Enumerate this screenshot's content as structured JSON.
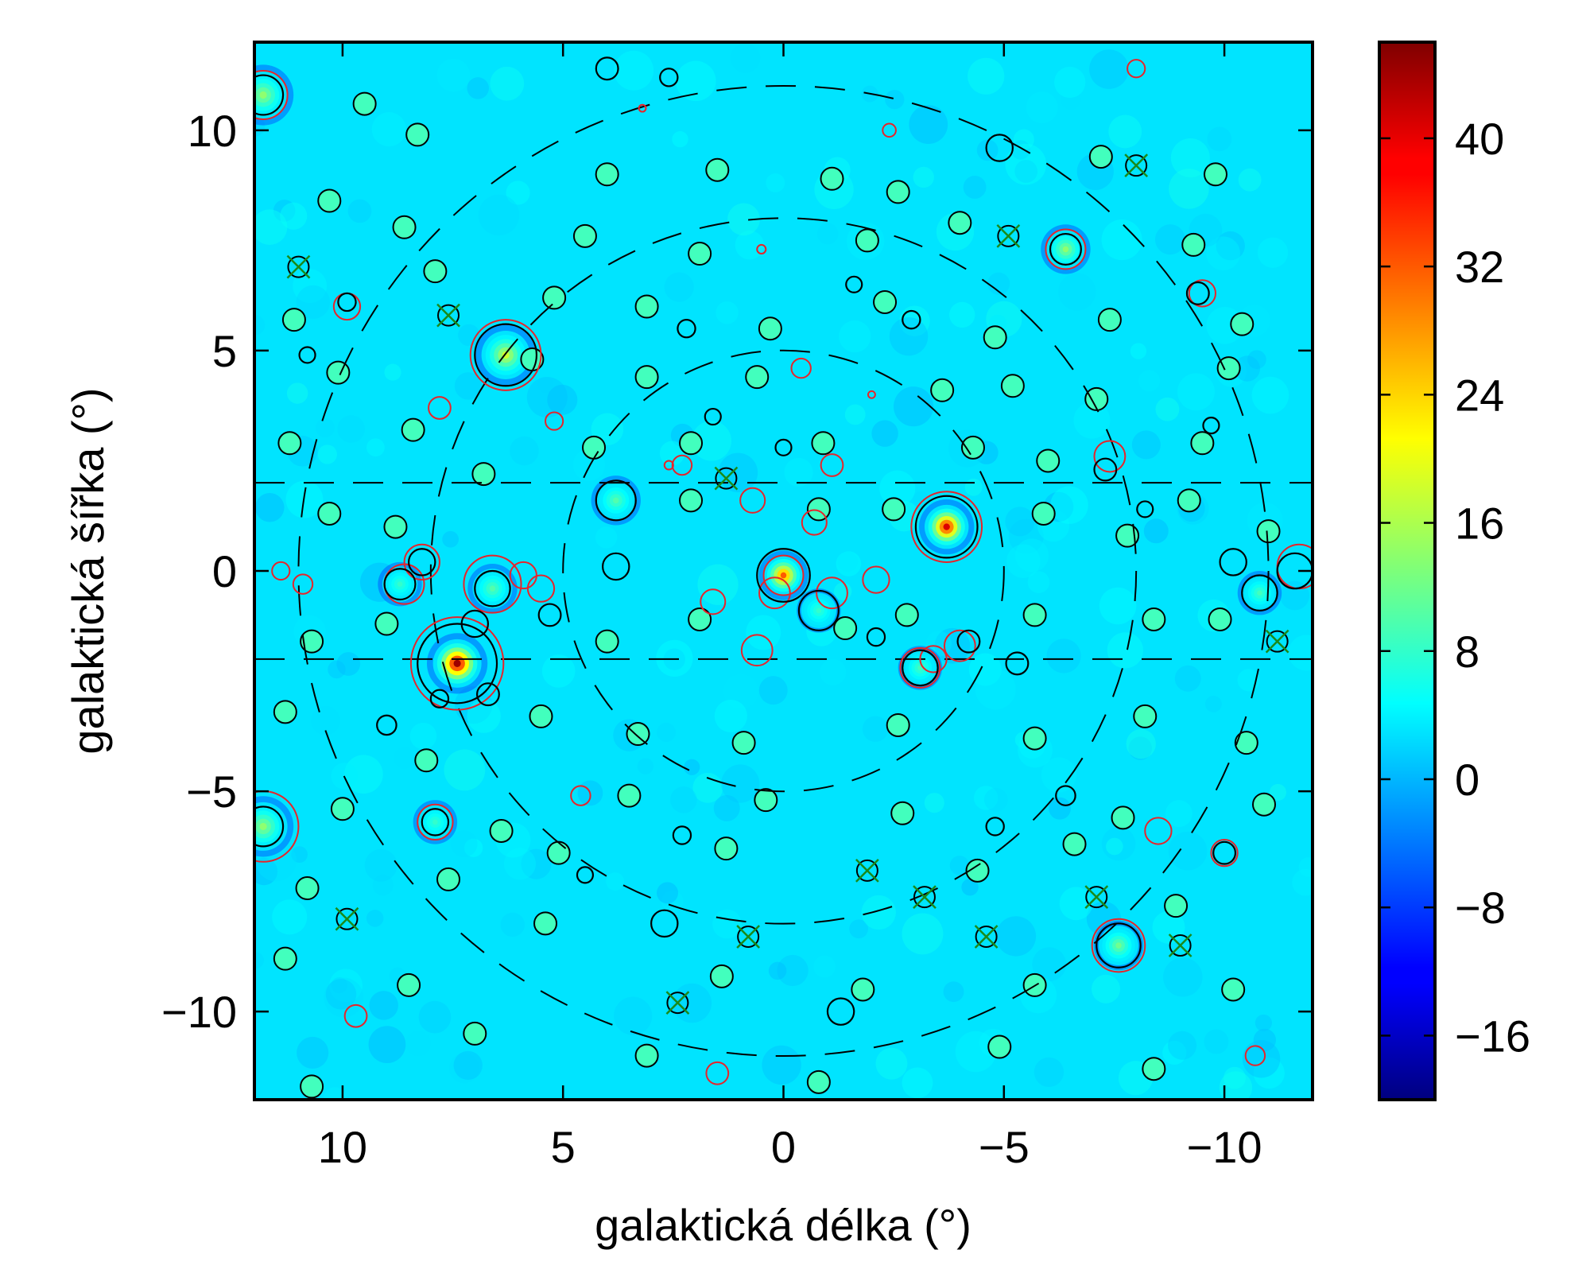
{
  "chart_data": {
    "type": "heatmap",
    "title": "",
    "xlabel": "galaktická délka (°)",
    "ylabel": "galaktická šířka (°)",
    "xlim": [
      12,
      -12
    ],
    "ylim": [
      -12,
      12
    ],
    "x_ticks": [
      10,
      5,
      0,
      -5,
      -10
    ],
    "x_tick_labels": [
      "10",
      "5",
      "0",
      "−5",
      "−10"
    ],
    "y_ticks": [
      10,
      5,
      0,
      -5,
      -10
    ],
    "y_tick_labels": [
      "10",
      "5",
      "0",
      "−5",
      "−10"
    ],
    "colorbar": {
      "colormap": "jet",
      "range": [
        -20,
        46
      ],
      "ticks": [
        40,
        32,
        24,
        16,
        8,
        0,
        -8,
        -16
      ],
      "tick_labels": [
        "40",
        "32",
        "24",
        "16",
        "8",
        "0",
        "−8",
        "−16"
      ]
    },
    "background_level": 3,
    "plane_band_latitudes": [
      2,
      -2
    ],
    "concentric_rings_deg": [
      5,
      8,
      11
    ],
    "bright_sources": [
      {
        "l": 7.4,
        "b": -2.1,
        "peak": 44,
        "size": 0.55
      },
      {
        "l": -3.7,
        "b": 1.0,
        "peak": 40,
        "size": 0.5
      },
      {
        "l": 0.0,
        "b": -0.1,
        "peak": 32,
        "size": 0.45
      },
      {
        "l": 6.3,
        "b": 4.9,
        "peak": 18,
        "size": 0.55
      },
      {
        "l": 11.8,
        "b": 10.8,
        "peak": 14,
        "size": 0.55
      },
      {
        "l": 11.8,
        "b": -5.8,
        "peak": 14,
        "size": 0.55
      },
      {
        "l": -6.4,
        "b": 7.3,
        "peak": 14,
        "size": 0.45
      },
      {
        "l": -7.6,
        "b": -8.5,
        "peak": 12,
        "size": 0.45
      },
      {
        "l": 6.6,
        "b": -0.4,
        "peak": 10,
        "size": 0.45
      },
      {
        "l": 3.8,
        "b": 1.6,
        "peak": 10,
        "size": 0.45
      },
      {
        "l": -3.1,
        "b": -2.2,
        "peak": 9,
        "size": 0.4
      },
      {
        "l": -10.8,
        "b": -0.5,
        "peak": 9,
        "size": 0.4
      },
      {
        "l": 8.7,
        "b": -0.3,
        "peak": 8,
        "size": 0.4
      },
      {
        "l": -0.8,
        "b": -0.9,
        "peak": 8,
        "size": 0.4
      },
      {
        "l": 7.9,
        "b": -5.7,
        "peak": 8,
        "size": 0.4
      }
    ],
    "black_circles": [
      {
        "l": 7.4,
        "b": -2.1,
        "r": 0.9
      },
      {
        "l": -3.7,
        "b": 1.0,
        "r": 0.7
      },
      {
        "l": 0.0,
        "b": -0.1,
        "r": 0.6
      },
      {
        "l": 6.3,
        "b": 4.9,
        "r": 0.7
      },
      {
        "l": 11.8,
        "b": 10.8,
        "r": 0.45
      },
      {
        "l": 11.8,
        "b": -5.8,
        "r": 0.45
      },
      {
        "l": -6.4,
        "b": 7.3,
        "r": 0.35
      },
      {
        "l": -7.6,
        "b": -8.5,
        "r": 0.5
      },
      {
        "l": 6.6,
        "b": -0.4,
        "r": 0.4
      },
      {
        "l": 3.8,
        "b": 1.6,
        "r": 0.45
      },
      {
        "l": -3.1,
        "b": -2.2,
        "r": 0.4
      },
      {
        "l": -10.8,
        "b": -0.5,
        "r": 0.4
      },
      {
        "l": 8.7,
        "b": -0.3,
        "r": 0.35
      },
      {
        "l": -0.8,
        "b": -0.9,
        "r": 0.45
      },
      {
        "l": 7.9,
        "b": -5.7,
        "r": 0.3
      },
      {
        "l": 7.0,
        "b": -1.2,
        "r": 0.3
      },
      {
        "l": 6.7,
        "b": -2.8,
        "r": 0.25
      },
      {
        "l": 7.8,
        "b": -2.9,
        "r": 0.2
      },
      {
        "l": 3.8,
        "b": 0.1,
        "r": 0.3
      },
      {
        "l": -11.6,
        "b": 0.0,
        "r": 0.4
      },
      {
        "l": -10.2,
        "b": 0.2,
        "r": 0.3
      },
      {
        "l": -4.9,
        "b": 9.6,
        "r": 0.3
      },
      {
        "l": 4.0,
        "b": 11.4,
        "r": 0.25
      },
      {
        "l": 2.6,
        "b": 11.2,
        "r": 0.2
      },
      {
        "l": 9.9,
        "b": 6.1,
        "r": 0.2
      },
      {
        "l": 8.2,
        "b": 0.2,
        "r": 0.3
      },
      {
        "l": 5.3,
        "b": -1.0,
        "r": 0.25
      },
      {
        "l": -1.3,
        "b": -10.0,
        "r": 0.3
      },
      {
        "l": 2.7,
        "b": -8.0,
        "r": 0.3
      },
      {
        "l": -5.3,
        "b": -2.1,
        "r": 0.25
      },
      {
        "l": -9.4,
        "b": 6.3,
        "r": 0.25
      },
      {
        "l": -10.0,
        "b": -6.4,
        "r": 0.25
      },
      {
        "l": -7.3,
        "b": 2.3,
        "r": 0.25
      },
      {
        "l": -2.9,
        "b": 5.7,
        "r": 0.2
      },
      {
        "l": 2.3,
        "b": -6.0,
        "r": 0.2
      },
      {
        "l": -4.8,
        "b": -5.8,
        "r": 0.2
      },
      {
        "l": -6.4,
        "b": -5.1,
        "r": 0.22
      },
      {
        "l": 9.0,
        "b": -3.5,
        "r": 0.22
      },
      {
        "l": 0.0,
        "b": 2.8,
        "r": 0.18
      },
      {
        "l": -2.1,
        "b": -1.5,
        "r": 0.2
      },
      {
        "l": 1.6,
        "b": 3.5,
        "r": 0.18
      },
      {
        "l": -4.2,
        "b": -1.6,
        "r": 0.25
      },
      {
        "l": 2.2,
        "b": 5.5,
        "r": 0.2
      },
      {
        "l": -1.6,
        "b": 6.5,
        "r": 0.18
      },
      {
        "l": 4.5,
        "b": -6.9,
        "r": 0.18
      },
      {
        "l": -8.2,
        "b": 1.4,
        "r": 0.18
      },
      {
        "l": -9.7,
        "b": 3.3,
        "r": 0.18
      },
      {
        "l": 10.8,
        "b": 4.9,
        "r": 0.18
      }
    ],
    "red_circles": [
      {
        "l": 7.4,
        "b": -2.1,
        "r": 1.05
      },
      {
        "l": -3.7,
        "b": 1.0,
        "r": 0.8
      },
      {
        "l": 6.6,
        "b": -0.3,
        "r": 0.65
      },
      {
        "l": 6.3,
        "b": 4.9,
        "r": 0.8
      },
      {
        "l": 0.0,
        "b": -0.1,
        "r": 0.45
      },
      {
        "l": -7.6,
        "b": -8.5,
        "r": 0.6
      },
      {
        "l": 8.6,
        "b": -0.3,
        "r": 0.45
      },
      {
        "l": 8.2,
        "b": 0.2,
        "r": 0.4
      },
      {
        "l": -11.7,
        "b": 0.1,
        "r": 0.5
      },
      {
        "l": -6.4,
        "b": 7.3,
        "r": 0.45
      },
      {
        "l": -3.1,
        "b": -2.2,
        "r": 0.45
      },
      {
        "l": 3.8,
        "b": 1.6,
        "r": 0.45
      },
      {
        "l": 11.8,
        "b": 10.8,
        "r": 0.55
      },
      {
        "l": 11.8,
        "b": -5.8,
        "r": 0.8
      },
      {
        "l": 7.9,
        "b": -5.7,
        "r": 0.4
      },
      {
        "l": -4.0,
        "b": -1.7,
        "r": 0.35
      },
      {
        "l": 0.6,
        "b": -1.8,
        "r": 0.35
      },
      {
        "l": 0.2,
        "b": -0.5,
        "r": 0.35
      },
      {
        "l": -1.1,
        "b": -0.5,
        "r": 0.35
      },
      {
        "l": -2.1,
        "b": -0.2,
        "r": 0.3
      },
      {
        "l": 0.7,
        "b": 1.6,
        "r": 0.28
      },
      {
        "l": -0.7,
        "b": 1.1,
        "r": 0.28
      },
      {
        "l": -7.4,
        "b": 2.6,
        "r": 0.35
      },
      {
        "l": 5.5,
        "b": -0.4,
        "r": 0.3
      },
      {
        "l": 5.9,
        "b": -0.1,
        "r": 0.3
      },
      {
        "l": 9.9,
        "b": 6.0,
        "r": 0.3
      },
      {
        "l": -9.5,
        "b": 6.3,
        "r": 0.3
      },
      {
        "l": -10.0,
        "b": -6.4,
        "r": 0.3
      },
      {
        "l": -8.5,
        "b": -5.9,
        "r": 0.3
      },
      {
        "l": 7.8,
        "b": 3.7,
        "r": 0.25
      },
      {
        "l": 1.6,
        "b": -0.7,
        "r": 0.28
      },
      {
        "l": -1.1,
        "b": 2.4,
        "r": 0.25
      },
      {
        "l": -0.4,
        "b": 4.6,
        "r": 0.22
      },
      {
        "l": 2.3,
        "b": 2.4,
        "r": 0.22
      },
      {
        "l": 4.6,
        "b": -5.1,
        "r": 0.22
      },
      {
        "l": 9.7,
        "b": -10.1,
        "r": 0.25
      },
      {
        "l": 1.5,
        "b": -11.4,
        "r": 0.25
      },
      {
        "l": -10.7,
        "b": -11.0,
        "r": 0.22
      },
      {
        "l": -8.0,
        "b": 11.4,
        "r": 0.2
      },
      {
        "l": -2.4,
        "b": 10.0,
        "r": 0.15
      },
      {
        "l": 0.5,
        "b": 7.3,
        "r": 0.1
      },
      {
        "l": 3.2,
        "b": 10.5,
        "r": 0.08
      },
      {
        "l": -2.0,
        "b": 4.0,
        "r": 0.08
      },
      {
        "l": 2.6,
        "b": 2.4,
        "r": 0.1
      },
      {
        "l": 11.4,
        "b": 0.0,
        "r": 0.2
      },
      {
        "l": 10.9,
        "b": -0.3,
        "r": 0.22
      },
      {
        "l": -3.4,
        "b": -2.0,
        "r": 0.3
      },
      {
        "l": 5.2,
        "b": 3.4,
        "r": 0.2
      }
    ],
    "green_crosses": [
      {
        "l": 11.0,
        "b": 6.9
      },
      {
        "l": 7.6,
        "b": 5.8
      },
      {
        "l": 1.3,
        "b": 2.1
      },
      {
        "l": -5.1,
        "b": 7.6
      },
      {
        "l": -8.0,
        "b": 9.2
      },
      {
        "l": -11.2,
        "b": -1.6
      },
      {
        "l": 9.9,
        "b": -7.9
      },
      {
        "l": 2.4,
        "b": -9.8
      },
      {
        "l": 0.8,
        "b": -8.3
      },
      {
        "l": -1.9,
        "b": -6.8
      },
      {
        "l": -3.2,
        "b": -7.4
      },
      {
        "l": -4.6,
        "b": -8.3
      },
      {
        "l": -7.1,
        "b": -7.4
      },
      {
        "l": -9.0,
        "b": -8.5
      }
    ],
    "minor_sources": [
      {
        "l": 9.5,
        "b": 10.6
      },
      {
        "l": 8.3,
        "b": 9.9
      },
      {
        "l": 4.0,
        "b": 9.0
      },
      {
        "l": 1.5,
        "b": 9.1
      },
      {
        "l": -1.1,
        "b": 8.9
      },
      {
        "l": -2.6,
        "b": 8.6
      },
      {
        "l": -7.2,
        "b": 9.4
      },
      {
        "l": -9.8,
        "b": 9.0
      },
      {
        "l": 10.3,
        "b": 8.4
      },
      {
        "l": 8.6,
        "b": 7.8
      },
      {
        "l": 4.5,
        "b": 7.6
      },
      {
        "l": 1.9,
        "b": 7.2
      },
      {
        "l": -1.9,
        "b": 7.5
      },
      {
        "l": -4.0,
        "b": 7.9
      },
      {
        "l": -9.3,
        "b": 7.4
      },
      {
        "l": 11.1,
        "b": 5.7
      },
      {
        "l": 7.9,
        "b": 6.8
      },
      {
        "l": 5.2,
        "b": 6.2
      },
      {
        "l": 3.1,
        "b": 6.0
      },
      {
        "l": 0.3,
        "b": 5.5
      },
      {
        "l": -2.3,
        "b": 6.1
      },
      {
        "l": -4.8,
        "b": 5.3
      },
      {
        "l": -7.4,
        "b": 5.7
      },
      {
        "l": -10.4,
        "b": 5.6
      },
      {
        "l": 10.1,
        "b": 4.5
      },
      {
        "l": 5.7,
        "b": 4.8
      },
      {
        "l": 3.1,
        "b": 4.4
      },
      {
        "l": 0.6,
        "b": 4.4
      },
      {
        "l": -3.6,
        "b": 4.1
      },
      {
        "l": -5.2,
        "b": 4.2
      },
      {
        "l": -7.1,
        "b": 3.9
      },
      {
        "l": -10.1,
        "b": 4.6
      },
      {
        "l": 11.2,
        "b": 2.9
      },
      {
        "l": 8.4,
        "b": 3.2
      },
      {
        "l": 4.3,
        "b": 2.8
      },
      {
        "l": 2.1,
        "b": 2.9
      },
      {
        "l": -0.9,
        "b": 2.9
      },
      {
        "l": -4.3,
        "b": 2.8
      },
      {
        "l": -6.0,
        "b": 2.5
      },
      {
        "l": -9.5,
        "b": 2.9
      },
      {
        "l": 10.3,
        "b": 1.3
      },
      {
        "l": 8.8,
        "b": 1.0
      },
      {
        "l": 6.8,
        "b": 2.2
      },
      {
        "l": 2.1,
        "b": 1.6
      },
      {
        "l": -0.8,
        "b": 1.4
      },
      {
        "l": -2.5,
        "b": 1.4
      },
      {
        "l": -5.9,
        "b": 1.3
      },
      {
        "l": -7.8,
        "b": 0.8
      },
      {
        "l": -9.2,
        "b": 1.6
      },
      {
        "l": -11.0,
        "b": 0.9
      },
      {
        "l": 10.7,
        "b": -1.6
      },
      {
        "l": 9.0,
        "b": -1.2
      },
      {
        "l": 4.0,
        "b": -1.6
      },
      {
        "l": 1.9,
        "b": -1.1
      },
      {
        "l": -1.4,
        "b": -1.3
      },
      {
        "l": -2.8,
        "b": -1.0
      },
      {
        "l": -5.7,
        "b": -1.0
      },
      {
        "l": -8.4,
        "b": -1.1
      },
      {
        "l": -9.9,
        "b": -1.1
      },
      {
        "l": 11.3,
        "b": -3.2
      },
      {
        "l": 8.1,
        "b": -4.3
      },
      {
        "l": 5.5,
        "b": -3.3
      },
      {
        "l": 3.3,
        "b": -3.7
      },
      {
        "l": 0.9,
        "b": -3.9
      },
      {
        "l": -2.6,
        "b": -3.5
      },
      {
        "l": -5.7,
        "b": -3.8
      },
      {
        "l": -8.2,
        "b": -3.3
      },
      {
        "l": -10.5,
        "b": -3.9
      },
      {
        "l": 10.0,
        "b": -5.4
      },
      {
        "l": 6.4,
        "b": -5.9
      },
      {
        "l": 3.5,
        "b": -5.1
      },
      {
        "l": 0.4,
        "b": -5.2
      },
      {
        "l": -2.7,
        "b": -5.5
      },
      {
        "l": -7.7,
        "b": -5.6
      },
      {
        "l": -10.9,
        "b": -5.3
      },
      {
        "l": 10.8,
        "b": -7.2
      },
      {
        "l": 7.6,
        "b": -7.0
      },
      {
        "l": 5.1,
        "b": -6.4
      },
      {
        "l": 1.3,
        "b": -6.3
      },
      {
        "l": -4.4,
        "b": -6.8
      },
      {
        "l": -6.6,
        "b": -6.2
      },
      {
        "l": -8.9,
        "b": -7.6
      },
      {
        "l": 11.3,
        "b": -8.8
      },
      {
        "l": 8.5,
        "b": -9.4
      },
      {
        "l": 5.4,
        "b": -8.0
      },
      {
        "l": 1.4,
        "b": -9.2
      },
      {
        "l": -1.8,
        "b": -9.5
      },
      {
        "l": -5.7,
        "b": -9.4
      },
      {
        "l": -10.2,
        "b": -9.5
      },
      {
        "l": 10.7,
        "b": -11.7
      },
      {
        "l": 7.0,
        "b": -10.5
      },
      {
        "l": 3.1,
        "b": -11.0
      },
      {
        "l": -0.8,
        "b": -11.6
      },
      {
        "l": -4.9,
        "b": -10.8
      },
      {
        "l": -8.4,
        "b": -11.3
      }
    ]
  }
}
